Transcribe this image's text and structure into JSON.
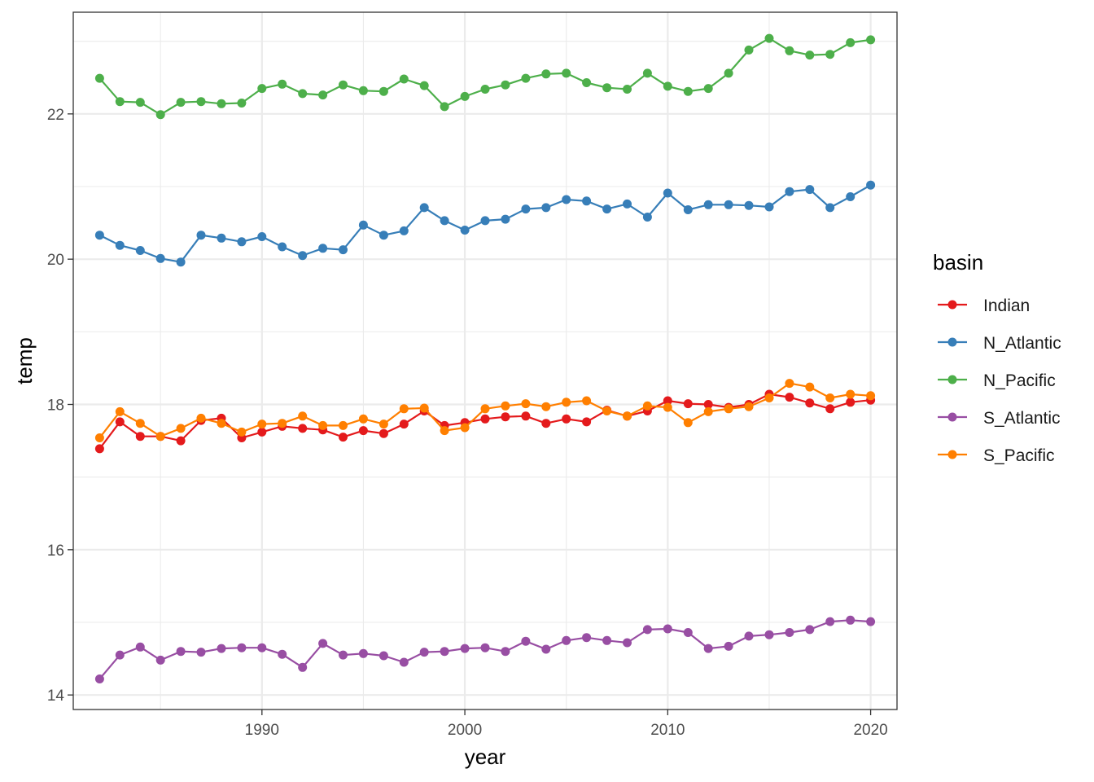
{
  "chart_data": {
    "type": "line",
    "markers": true,
    "xlabel": "year",
    "ylabel": "temp",
    "xlim": [
      1980.7,
      2021.3
    ],
    "ylim": [
      13.8,
      23.4
    ],
    "x_ticks": [
      1990,
      2000,
      2010,
      2020
    ],
    "x_minor_ticks": [
      1985,
      1995,
      2005,
      2015
    ],
    "y_ticks": [
      14,
      16,
      18,
      20,
      22
    ],
    "y_minor_ticks": [
      15,
      17,
      19,
      21,
      23
    ],
    "x_tick_labels": [
      "1990",
      "2000",
      "2010",
      "2020"
    ],
    "y_tick_labels": [
      "14",
      "16",
      "18",
      "20",
      "22"
    ],
    "grid": true,
    "legend": {
      "title": "basin",
      "position": "right"
    },
    "x": [
      1982,
      1983,
      1984,
      1985,
      1986,
      1987,
      1988,
      1989,
      1990,
      1991,
      1992,
      1993,
      1994,
      1995,
      1996,
      1997,
      1998,
      1999,
      2000,
      2001,
      2002,
      2003,
      2004,
      2005,
      2006,
      2007,
      2008,
      2009,
      2010,
      2011,
      2012,
      2013,
      2014,
      2015,
      2016,
      2017,
      2018,
      2019,
      2020
    ],
    "series": [
      {
        "name": "Indian",
        "color": "#e41a1c",
        "values": [
          17.39,
          17.76,
          17.56,
          17.56,
          17.5,
          17.78,
          17.81,
          17.54,
          17.62,
          17.7,
          17.67,
          17.65,
          17.55,
          17.64,
          17.6,
          17.73,
          17.91,
          17.71,
          17.75,
          17.8,
          17.83,
          17.84,
          17.74,
          17.8,
          17.76,
          17.92,
          17.84,
          17.91,
          18.05,
          18.01,
          18.0,
          17.96,
          18.0,
          18.14,
          18.1,
          18.02,
          17.94,
          18.03,
          18.06
        ]
      },
      {
        "name": "N_Atlantic",
        "color": "#377eb8",
        "values": [
          20.33,
          20.19,
          20.12,
          20.01,
          19.96,
          20.33,
          20.29,
          20.24,
          20.31,
          20.17,
          20.05,
          20.15,
          20.13,
          20.47,
          20.33,
          20.39,
          20.71,
          20.53,
          20.4,
          20.53,
          20.55,
          20.69,
          20.71,
          20.82,
          20.8,
          20.69,
          20.76,
          20.58,
          20.91,
          20.68,
          20.75,
          20.75,
          20.74,
          20.72,
          20.93,
          20.96,
          20.71,
          20.86,
          21.02
        ]
      },
      {
        "name": "N_Pacific",
        "color": "#4daf4a",
        "values": [
          22.49,
          22.17,
          22.16,
          21.99,
          22.16,
          22.17,
          22.14,
          22.15,
          22.35,
          22.41,
          22.28,
          22.26,
          22.4,
          22.32,
          22.31,
          22.48,
          22.39,
          22.1,
          22.24,
          22.34,
          22.4,
          22.49,
          22.55,
          22.56,
          22.43,
          22.36,
          22.34,
          22.56,
          22.38,
          22.31,
          22.35,
          22.56,
          22.88,
          23.04,
          22.87,
          22.81,
          22.82,
          22.98,
          23.02
        ]
      },
      {
        "name": "S_Atlantic",
        "color": "#984ea3",
        "values": [
          14.22,
          14.55,
          14.66,
          14.48,
          14.6,
          14.59,
          14.64,
          14.65,
          14.65,
          14.56,
          14.38,
          14.71,
          14.55,
          14.57,
          14.54,
          14.45,
          14.59,
          14.6,
          14.64,
          14.65,
          14.6,
          14.74,
          14.63,
          14.75,
          14.79,
          14.75,
          14.72,
          14.9,
          14.91,
          14.86,
          14.64,
          14.67,
          14.81,
          14.83,
          14.86,
          14.9,
          15.01,
          15.03,
          15.01
        ]
      },
      {
        "name": "S_Pacific",
        "color": "#ff7f00",
        "values": [
          17.54,
          17.9,
          17.74,
          17.56,
          17.67,
          17.81,
          17.74,
          17.62,
          17.73,
          17.74,
          17.84,
          17.71,
          17.71,
          17.8,
          17.73,
          17.94,
          17.95,
          17.64,
          17.68,
          17.94,
          17.98,
          18.01,
          17.97,
          18.03,
          18.05,
          17.91,
          17.84,
          17.98,
          17.96,
          17.75,
          17.9,
          17.94,
          17.97,
          18.09,
          18.29,
          18.24,
          18.09,
          18.14,
          18.12
        ]
      }
    ]
  }
}
